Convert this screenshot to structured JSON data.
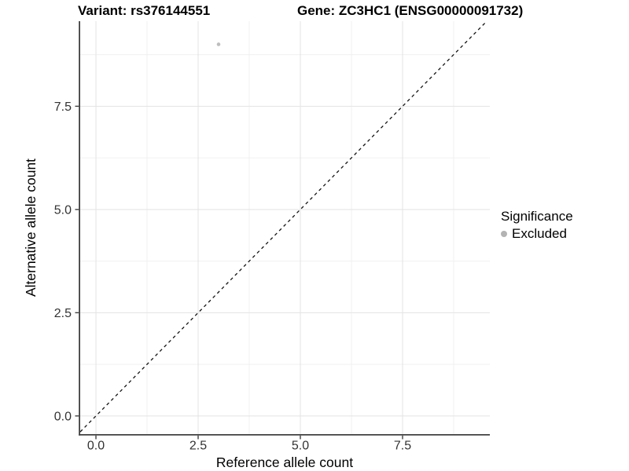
{
  "chart_data": {
    "type": "scatter",
    "title": {
      "variant": "Variant: rs376144551",
      "gene": "Gene: ZC3HC1 (ENSG00000091732)"
    },
    "xlabel": "Reference allele count",
    "ylabel": "Alternative allele count",
    "xlim": [
      -0.385,
      9.635
    ],
    "ylim": [
      -0.44,
      9.56
    ],
    "x_ticks": [
      0,
      2.5,
      5,
      7.5
    ],
    "x_tick_labels": [
      "0.0",
      "2.5",
      "5.0",
      "7.5"
    ],
    "y_ticks": [
      0,
      2.5,
      5,
      7.5
    ],
    "y_tick_labels": [
      "0.0",
      "2.5",
      "5.0",
      "7.5"
    ],
    "x_minor_ticks": [
      1.25,
      3.75,
      6.25,
      8.75
    ],
    "y_minor_ticks": [
      1.25,
      3.75,
      6.25,
      8.75
    ],
    "grid": true,
    "points": [
      {
        "x": 3,
        "y": 9,
        "significance": "Excluded"
      }
    ],
    "reference_line": {
      "kind": "identity",
      "slope": 1,
      "intercept": 0,
      "style": "dashed"
    },
    "legend": {
      "title": "Significance",
      "position": "right",
      "items": [
        {
          "label": "Excluded",
          "marker": "circle",
          "color": "#b3b3b3"
        }
      ]
    }
  },
  "colors": {
    "background": "#ffffff",
    "point": "#bdbdbd",
    "grid_major": "#e3e3e3",
    "grid_minor": "#f0f0f0",
    "axis_line": "#404040",
    "tick_label": "#333333",
    "title_text": "#000000",
    "reference_line": "#141414"
  }
}
